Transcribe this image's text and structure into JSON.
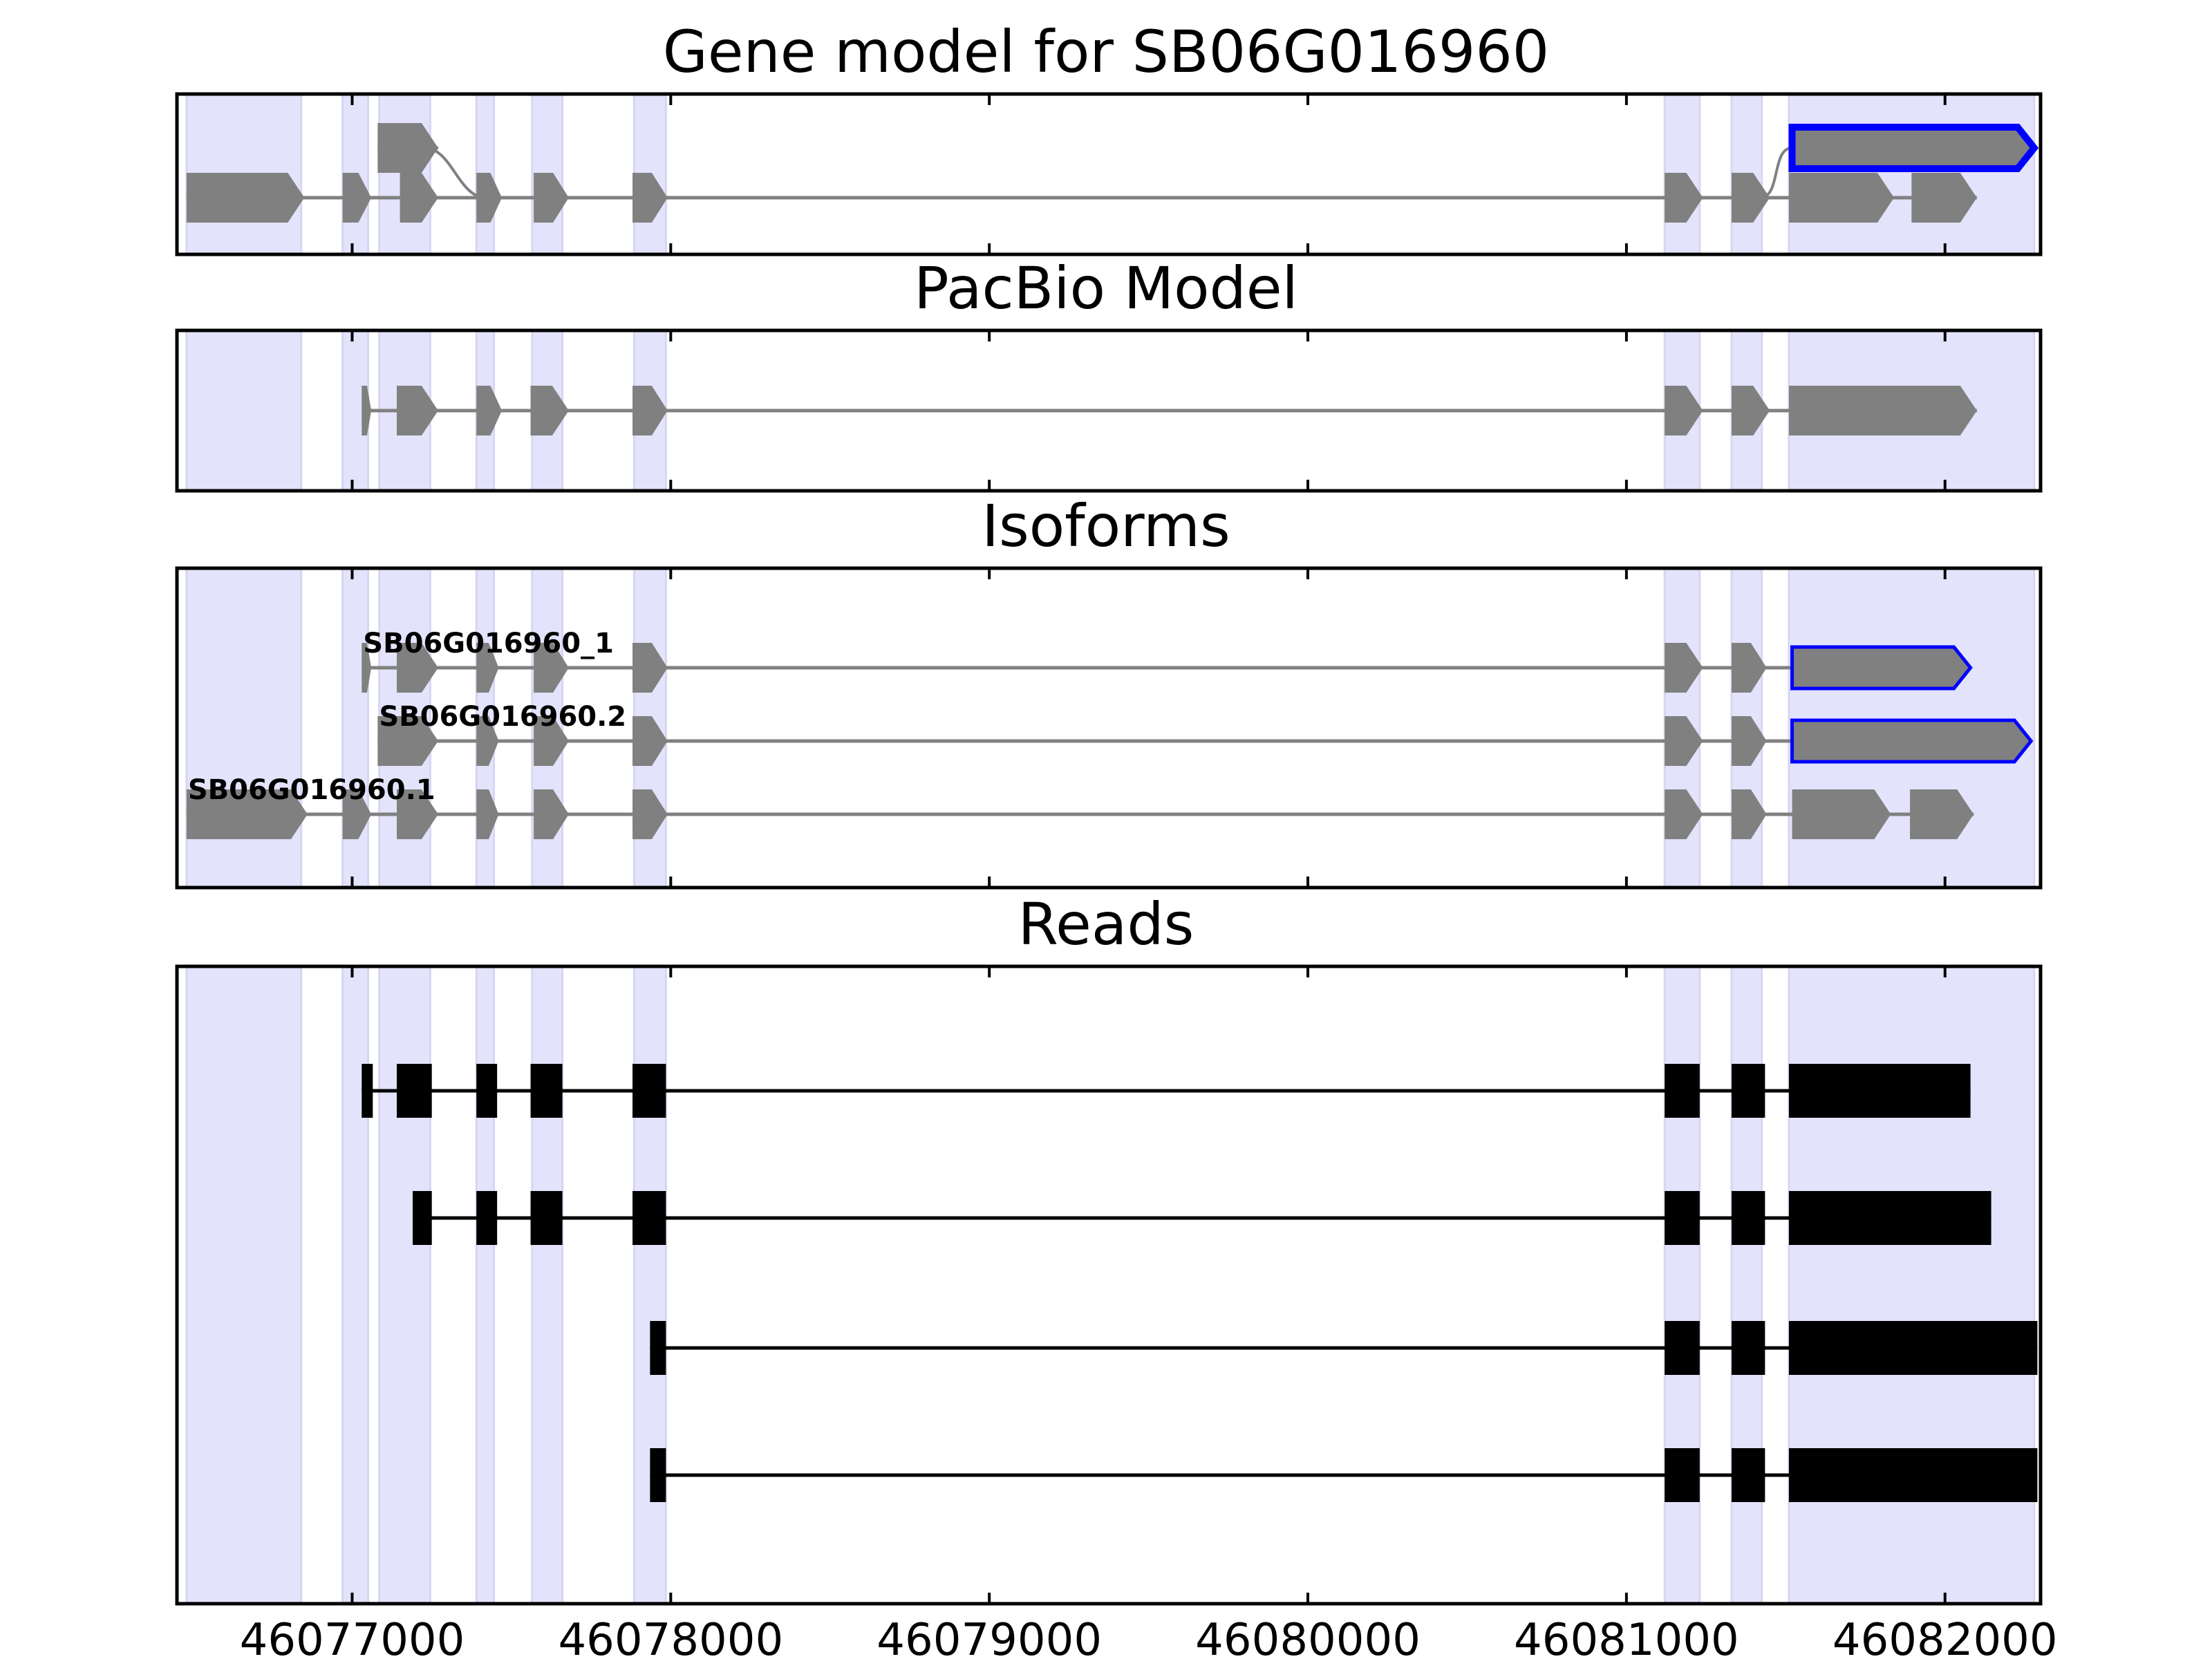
{
  "chart_data": {
    "type": "gene_track",
    "x_ticks": [
      46077000,
      46078000,
      46079000,
      46080000,
      46081000,
      46082000
    ],
    "x_tick_labels": [
      "46077000",
      "46078000",
      "46079000",
      "46080000",
      "46081000",
      "46082000"
    ],
    "xlim": [
      46076450,
      46082300
    ],
    "colors": {
      "exon": "#808080",
      "intron": "#808080",
      "highlight_stroke": "#0000ff",
      "read": "#000000",
      "shade": "#e3e3fb"
    },
    "shaded_regions": [
      [
        46076480,
        46076840
      ],
      [
        46076970,
        46077050
      ],
      [
        46077085,
        46077245
      ],
      [
        46077390,
        46077445
      ],
      [
        46077565,
        46077660
      ],
      [
        46077885,
        46077985
      ],
      [
        46081120,
        46081230
      ],
      [
        46081330,
        46081425
      ],
      [
        46081510,
        46082280
      ]
    ],
    "panels": [
      {
        "title": "Gene model for SB06G016960",
        "transcripts": [
          {
            "exons": [
              [
                46076480,
                46076850
              ],
              [
                46076970,
                46077060
              ],
              [
                46077150,
                46077270
              ],
              [
                46077390,
                46077470
              ],
              [
                46077570,
                46077680
              ],
              [
                46077880,
                46077990
              ],
              [
                46081120,
                46081240
              ],
              [
                46081330,
                46081450
              ],
              [
                46081510,
                46081840
              ],
              [
                46081895,
                46082100
              ]
            ],
            "color": "#808080",
            "highlight": false
          },
          {
            "exons": [
              [
                46077080,
                46077270
              ]
            ],
            "connect_to": 46077420,
            "color": "#808080",
            "highlight": false,
            "upper": true
          },
          {
            "exons": [
              [
                46081520,
                46082280
              ]
            ],
            "connect_from": 46081420,
            "color": "#808080",
            "highlight": true,
            "upper": true
          }
        ]
      },
      {
        "title": "PacBio Model",
        "transcripts": [
          {
            "exons": [
              [
                46077030,
                46077060
              ],
              [
                46077140,
                46077270
              ],
              [
                46077390,
                46077470
              ],
              [
                46077560,
                46077680
              ],
              [
                46077880,
                46077990
              ],
              [
                46081120,
                46081240
              ],
              [
                46081330,
                46081450
              ],
              [
                46081510,
                46082100
              ]
            ],
            "color": "#808080",
            "highlight": false
          }
        ]
      },
      {
        "title": "Isoforms",
        "transcripts": [
          {
            "label": "SB06G016960_1",
            "exons": [
              [
                46077030,
                46077060
              ],
              [
                46077140,
                46077270
              ],
              [
                46077390,
                46077460
              ],
              [
                46077570,
                46077680
              ],
              [
                46077880,
                46077990
              ],
              [
                46081120,
                46081240
              ],
              [
                46081330,
                46081440
              ],
              [
                46081520,
                46082080
              ]
            ],
            "color": "#808080",
            "highlight": true
          },
          {
            "label": "SB06G016960.2",
            "exons": [
              [
                46077080,
                46077270
              ],
              [
                46077390,
                46077460
              ],
              [
                46077570,
                46077680
              ],
              [
                46077880,
                46077990
              ],
              [
                46081120,
                46081240
              ],
              [
                46081330,
                46081440
              ],
              [
                46081520,
                46082270
              ]
            ],
            "color": "#808080",
            "highlight": true
          },
          {
            "label": "SB06G016960.1",
            "exons": [
              [
                46076480,
                46076860
              ],
              [
                46076970,
                46077060
              ],
              [
                46077140,
                46077270
              ],
              [
                46077390,
                46077460
              ],
              [
                46077570,
                46077680
              ],
              [
                46077880,
                46077990
              ],
              [
                46081120,
                46081240
              ],
              [
                46081330,
                46081440
              ],
              [
                46081520,
                46081830
              ],
              [
                46081890,
                46082090
              ]
            ],
            "color": "#808080",
            "highlight": false
          }
        ]
      },
      {
        "title": "Reads",
        "reads": [
          {
            "exons": [
              [
                46077030,
                46077060
              ],
              [
                46077140,
                46077250
              ],
              [
                46077390,
                46077455
              ],
              [
                46077560,
                46077660
              ],
              [
                46077880,
                46077985
              ],
              [
                46081120,
                46081230
              ],
              [
                46081330,
                46081435
              ],
              [
                46081510,
                46082080
              ]
            ]
          },
          {
            "exons": [
              [
                46077190,
                46077250
              ],
              [
                46077390,
                46077455
              ],
              [
                46077560,
                46077660
              ],
              [
                46077880,
                46077985
              ],
              [
                46081120,
                46081230
              ],
              [
                46081330,
                46081435
              ],
              [
                46081510,
                46082145
              ]
            ]
          },
          {
            "exons": [
              [
                46077935,
                46077985
              ],
              [
                46081120,
                46081230
              ],
              [
                46081330,
                46081435
              ],
              [
                46081510,
                46082290
              ]
            ]
          },
          {
            "exons": [
              [
                46077935,
                46077985
              ],
              [
                46081120,
                46081230
              ],
              [
                46081330,
                46081435
              ],
              [
                46081510,
                46082290
              ]
            ]
          }
        ]
      }
    ]
  }
}
